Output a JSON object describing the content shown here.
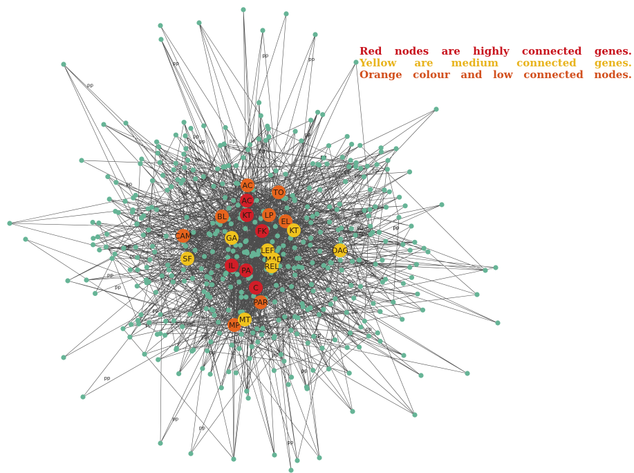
{
  "legend": {
    "red_text": "Red nodes are highly connected genes.",
    "yellow_text": "Yellow are medium connected genes.",
    "orange_text": "Orange colour and low connected nodes."
  },
  "colors": {
    "red_legend": "#c8141e",
    "yellow_legend": "#e8b41e",
    "orange_legend": "#d2501e",
    "node_peripheral": "#66b496",
    "node_red": "#d21e28",
    "node_orange": "#e6641e",
    "node_yellow": "#f0c31e",
    "edge": "#111111"
  },
  "edge_label": "pp",
  "hubs": [
    {
      "label": "AC",
      "level": "orange"
    },
    {
      "label": "TO",
      "level": "orange"
    },
    {
      "label": "AC",
      "level": "red"
    },
    {
      "label": "BL",
      "level": "orange"
    },
    {
      "label": "KT",
      "level": "red"
    },
    {
      "label": "LP",
      "level": "orange"
    },
    {
      "label": "EL",
      "level": "orange"
    },
    {
      "label": "KT",
      "level": "yellow"
    },
    {
      "label": "FK",
      "level": "red"
    },
    {
      "label": "CAM",
      "level": "orange"
    },
    {
      "label": "GA",
      "level": "yellow"
    },
    {
      "label": "LEF",
      "level": "yellow"
    },
    {
      "label": "MAD",
      "level": "yellow"
    },
    {
      "label": "DAG",
      "level": "yellow"
    },
    {
      "label": "SF",
      "level": "yellow"
    },
    {
      "label": "REL",
      "level": "yellow"
    },
    {
      "label": "IL",
      "level": "red"
    },
    {
      "label": "PA",
      "level": "red"
    },
    {
      "label": "C",
      "level": "red"
    },
    {
      "label": "PAR",
      "level": "orange"
    },
    {
      "label": "MP",
      "level": "orange"
    },
    {
      "label": "MT",
      "level": "yellow"
    }
  ]
}
